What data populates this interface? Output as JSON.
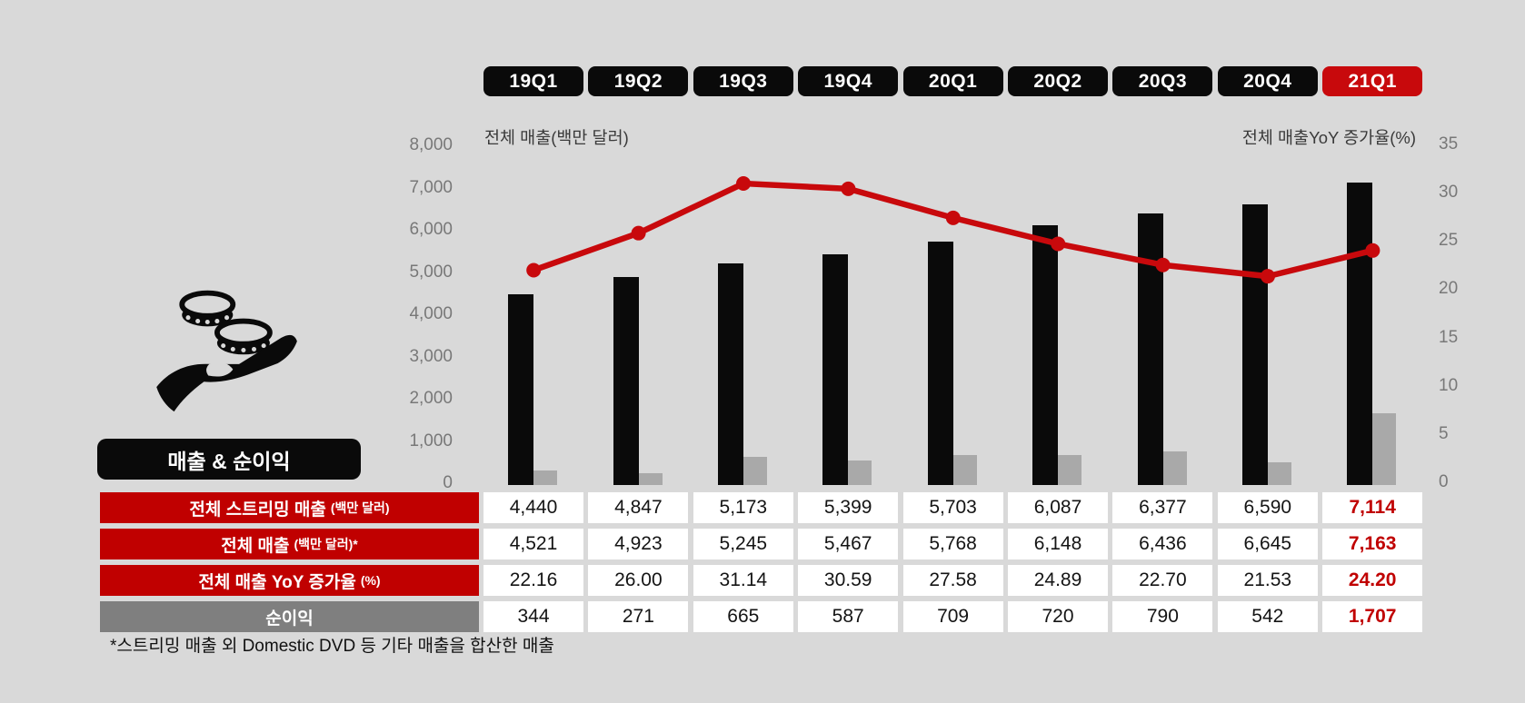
{
  "slide": {
    "badge_label": "매출 & 순이익",
    "footnote": "*스트리밍 매출 외 Domestic DVD 등 기타 매출을 합산한 매출"
  },
  "quarters": {
    "labels": [
      "19Q1",
      "19Q2",
      "19Q3",
      "19Q4",
      "20Q1",
      "20Q2",
      "20Q3",
      "20Q4",
      "21Q1"
    ],
    "highlight_index": 8
  },
  "chart_data": {
    "type": "combo",
    "categories": [
      "19Q1",
      "19Q2",
      "19Q3",
      "19Q4",
      "20Q1",
      "20Q2",
      "20Q3",
      "20Q4",
      "21Q1"
    ],
    "series": [
      {
        "name": "전체 매출 (백만 달러)",
        "chart": "bar",
        "axis": "left",
        "color": "#0a0a0a",
        "values": [
          4521,
          4923,
          5245,
          5467,
          5768,
          6148,
          6436,
          6645,
          7163
        ]
      },
      {
        "name": "순이익 (백만 달러)",
        "chart": "bar",
        "axis": "left",
        "color": "#a9a9a9",
        "values": [
          344,
          271,
          665,
          587,
          709,
          720,
          790,
          542,
          1707
        ]
      },
      {
        "name": "전체 매출 YoY 증가율 (%)",
        "chart": "line",
        "axis": "right",
        "color": "#c8090c",
        "values": [
          22.16,
          26.0,
          31.14,
          30.59,
          27.58,
          24.89,
          22.7,
          21.53,
          24.2
        ]
      }
    ],
    "streaming_revenue_reference": [
      4440,
      4847,
      5173,
      5399,
      5703,
      6087,
      6377,
      6590,
      7114
    ],
    "left_axis": {
      "title": "전체 매출(백만 달러)",
      "min": 0,
      "max": 8000,
      "tick_step": 1000,
      "tick_labels": [
        "0",
        "1,000",
        "2,000",
        "3,000",
        "4,000",
        "5,000",
        "6,000",
        "7,000",
        "8,000"
      ]
    },
    "right_axis": {
      "title": "전체 매출YoY 증가율(%)",
      "min": 0,
      "max": 35,
      "tick_step": 5,
      "tick_labels": [
        "0",
        "5",
        "10",
        "15",
        "20",
        "25",
        "30",
        "35"
      ]
    },
    "grid": false,
    "legend": "none"
  },
  "table": {
    "highlight_column": 8,
    "rows": [
      {
        "label": "전체 스트리밍 매출",
        "label_small": "(백만 달러)",
        "label_bg": "red",
        "values": [
          "4,440",
          "4,847",
          "5,173",
          "5,399",
          "5,703",
          "6,087",
          "6,377",
          "6,590",
          "7,114"
        ]
      },
      {
        "label": "전체 매출",
        "label_small": "(백만 달러)*",
        "label_bg": "red",
        "values": [
          "4,521",
          "4,923",
          "5,245",
          "5,467",
          "5,768",
          "6,148",
          "6,436",
          "6,645",
          "7,163"
        ]
      },
      {
        "label": "전체 매출 YoY 증가율",
        "label_small": "(%)",
        "label_bg": "red",
        "values": [
          "22.16",
          "26.00",
          "31.14",
          "30.59",
          "27.58",
          "24.89",
          "22.70",
          "21.53",
          "24.20"
        ]
      },
      {
        "label": "순이익",
        "label_small": "",
        "label_bg": "gray",
        "values": [
          "344",
          "271",
          "665",
          "587",
          "709",
          "720",
          "790",
          "542",
          "1,707"
        ]
      }
    ]
  },
  "colors": {
    "background": "#d9d9d9",
    "bar_black": "#0a0a0a",
    "bar_gray": "#a9a9a9",
    "accent_red": "#c8090c",
    "value_red": "#c00000",
    "label_gray": "#7f7f7f",
    "tick_text": "#787878"
  },
  "icon": {
    "name": "hand-coins-icon"
  }
}
